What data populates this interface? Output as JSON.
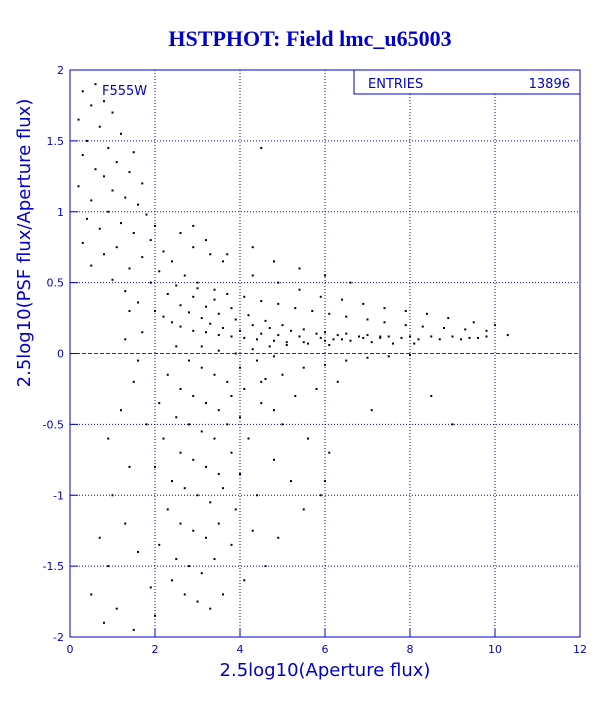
{
  "chart_data": {
    "type": "scatter",
    "title": "HSTPHOT: Field lmc_u65003",
    "filter_label": "F555W",
    "xlabel": "2.5log10(Aperture flux)",
    "ylabel": "2.5log10(PSF flux/Aperture flux)",
    "xlim": [
      0,
      12
    ],
    "ylim": [
      -2,
      2
    ],
    "x_ticks": [
      "0",
      "2",
      "4",
      "6",
      "8",
      "10",
      "12"
    ],
    "y_ticks": [
      "-2",
      "-1.5",
      "-1",
      "-0.5",
      "0",
      "0.5",
      "1",
      "1.5",
      "2"
    ],
    "grid": true,
    "reference_line_y": 0,
    "stats": {
      "label": "ENTRIES",
      "value": "13896"
    },
    "colors": {
      "text": "#0000cc",
      "frame": "#0000cc",
      "grid": "#0000cc",
      "points": "#000000",
      "zero_line": "#cc0000"
    },
    "points": [
      [
        0.6,
        1.9
      ],
      [
        0.3,
        1.85
      ],
      [
        0.8,
        1.78
      ],
      [
        0.5,
        1.75
      ],
      [
        1.0,
        1.7
      ],
      [
        0.2,
        1.65
      ],
      [
        0.7,
        1.6
      ],
      [
        1.2,
        1.55
      ],
      [
        0.4,
        1.5
      ],
      [
        0.9,
        1.45
      ],
      [
        1.5,
        1.42
      ],
      [
        0.3,
        1.4
      ],
      [
        1.1,
        1.35
      ],
      [
        0.6,
        1.3
      ],
      [
        1.4,
        1.28
      ],
      [
        0.8,
        1.25
      ],
      [
        1.7,
        1.2
      ],
      [
        0.2,
        1.18
      ],
      [
        1.0,
        1.15
      ],
      [
        1.3,
        1.1
      ],
      [
        0.5,
        1.08
      ],
      [
        1.6,
        1.05
      ],
      [
        0.9,
        1.0
      ],
      [
        1.8,
        0.98
      ],
      [
        0.4,
        0.95
      ],
      [
        1.2,
        0.92
      ],
      [
        2.0,
        0.9
      ],
      [
        0.7,
        0.88
      ],
      [
        1.5,
        0.85
      ],
      [
        1.9,
        0.8
      ],
      [
        0.3,
        0.78
      ],
      [
        1.1,
        0.75
      ],
      [
        2.2,
        0.72
      ],
      [
        0.8,
        0.7
      ],
      [
        1.7,
        0.68
      ],
      [
        2.4,
        0.65
      ],
      [
        0.5,
        0.62
      ],
      [
        1.4,
        0.6
      ],
      [
        2.1,
        0.58
      ],
      [
        2.7,
        0.55
      ],
      [
        1.0,
        0.52
      ],
      [
        1.9,
        0.5
      ],
      [
        2.5,
        0.48
      ],
      [
        3.0,
        0.46
      ],
      [
        1.3,
        0.44
      ],
      [
        2.3,
        0.42
      ],
      [
        2.9,
        0.4
      ],
      [
        3.4,
        0.38
      ],
      [
        1.6,
        0.36
      ],
      [
        2.6,
        0.34
      ],
      [
        3.2,
        0.33
      ],
      [
        3.8,
        0.32
      ],
      [
        2.0,
        0.3
      ],
      [
        2.8,
        0.29
      ],
      [
        3.5,
        0.28
      ],
      [
        4.2,
        0.27
      ],
      [
        2.2,
        0.26
      ],
      [
        3.1,
        0.25
      ],
      [
        3.9,
        0.24
      ],
      [
        4.6,
        0.23
      ],
      [
        2.4,
        0.22
      ],
      [
        3.3,
        0.21
      ],
      [
        4.3,
        0.2
      ],
      [
        5.0,
        0.2
      ],
      [
        2.6,
        0.19
      ],
      [
        3.6,
        0.18
      ],
      [
        4.7,
        0.18
      ],
      [
        5.5,
        0.17
      ],
      [
        2.9,
        0.16
      ],
      [
        4.0,
        0.16
      ],
      [
        5.2,
        0.16
      ],
      [
        6.0,
        0.15
      ],
      [
        3.2,
        0.15
      ],
      [
        4.5,
        0.14
      ],
      [
        5.8,
        0.14
      ],
      [
        6.5,
        0.14
      ],
      [
        3.5,
        0.13
      ],
      [
        4.9,
        0.13
      ],
      [
        6.3,
        0.13
      ],
      [
        7.0,
        0.13
      ],
      [
        3.8,
        0.12
      ],
      [
        5.4,
        0.12
      ],
      [
        6.8,
        0.12
      ],
      [
        7.5,
        0.12
      ],
      [
        4.1,
        0.11
      ],
      [
        5.9,
        0.11
      ],
      [
        7.3,
        0.11
      ],
      [
        8.0,
        0.12
      ],
      [
        4.4,
        0.1
      ],
      [
        6.2,
        0.1
      ],
      [
        7.8,
        0.11
      ],
      [
        8.5,
        0.12
      ],
      [
        4.8,
        0.09
      ],
      [
        6.6,
        0.09
      ],
      [
        8.2,
        0.1
      ],
      [
        9.0,
        0.12
      ],
      [
        5.1,
        0.08
      ],
      [
        7.1,
        0.08
      ],
      [
        8.7,
        0.1
      ],
      [
        9.4,
        0.11
      ],
      [
        5.6,
        0.07
      ],
      [
        7.6,
        0.07
      ],
      [
        9.2,
        0.1
      ],
      [
        9.8,
        0.12
      ],
      [
        6.1,
        0.06
      ],
      [
        8.1,
        0.07
      ],
      [
        9.6,
        0.11
      ],
      [
        10.3,
        0.13
      ],
      [
        3.0,
        0.5
      ],
      [
        3.4,
        0.45
      ],
      [
        3.7,
        0.42
      ],
      [
        4.1,
        0.4
      ],
      [
        4.5,
        0.37
      ],
      [
        4.9,
        0.35
      ],
      [
        5.3,
        0.32
      ],
      [
        5.7,
        0.3
      ],
      [
        6.1,
        0.28
      ],
      [
        6.5,
        0.26
      ],
      [
        7.0,
        0.24
      ],
      [
        7.4,
        0.22
      ],
      [
        7.9,
        0.2
      ],
      [
        8.3,
        0.19
      ],
      [
        8.8,
        0.18
      ],
      [
        9.3,
        0.17
      ],
      [
        9.8,
        0.16
      ],
      [
        3.1,
        0.05
      ],
      [
        3.5,
        0.02
      ],
      [
        3.9,
        0.0
      ],
      [
        4.3,
        0.03
      ],
      [
        4.7,
        0.05
      ],
      [
        5.1,
        0.06
      ],
      [
        5.5,
        0.08
      ],
      [
        6.0,
        0.09
      ],
      [
        6.4,
        0.1
      ],
      [
        6.9,
        0.11
      ],
      [
        7.3,
        0.12
      ],
      [
        2.5,
        0.05
      ],
      [
        2.8,
        -0.05
      ],
      [
        3.1,
        -0.1
      ],
      [
        3.4,
        -0.15
      ],
      [
        3.7,
        -0.2
      ],
      [
        4.0,
        -0.1
      ],
      [
        4.4,
        -0.05
      ],
      [
        4.8,
        -0.02
      ],
      [
        2.3,
        -0.15
      ],
      [
        2.6,
        -0.25
      ],
      [
        2.9,
        -0.3
      ],
      [
        3.2,
        -0.35
      ],
      [
        3.5,
        -0.4
      ],
      [
        3.8,
        -0.3
      ],
      [
        4.1,
        -0.25
      ],
      [
        4.6,
        -0.18
      ],
      [
        2.1,
        -0.35
      ],
      [
        2.5,
        -0.45
      ],
      [
        2.8,
        -0.5
      ],
      [
        3.1,
        -0.55
      ],
      [
        3.4,
        -0.6
      ],
      [
        3.7,
        -0.5
      ],
      [
        4.0,
        -0.45
      ],
      [
        4.5,
        -0.35
      ],
      [
        2.2,
        -0.6
      ],
      [
        2.6,
        -0.7
      ],
      [
        2.9,
        -0.75
      ],
      [
        3.2,
        -0.8
      ],
      [
        3.5,
        -0.85
      ],
      [
        3.8,
        -0.7
      ],
      [
        4.2,
        -0.6
      ],
      [
        5.0,
        -0.5
      ],
      [
        2.0,
        -0.8
      ],
      [
        2.4,
        -0.9
      ],
      [
        2.7,
        -0.95
      ],
      [
        3.0,
        -1.0
      ],
      [
        3.3,
        -1.05
      ],
      [
        3.6,
        -0.95
      ],
      [
        4.0,
        -0.85
      ],
      [
        4.8,
        -0.75
      ],
      [
        2.3,
        -1.1
      ],
      [
        2.6,
        -1.2
      ],
      [
        2.9,
        -1.25
      ],
      [
        3.2,
        -1.3
      ],
      [
        3.5,
        -1.2
      ],
      [
        3.9,
        -1.1
      ],
      [
        4.4,
        -1.0
      ],
      [
        5.2,
        -0.9
      ],
      [
        2.1,
        -1.35
      ],
      [
        2.5,
        -1.45
      ],
      [
        2.8,
        -1.5
      ],
      [
        3.1,
        -1.55
      ],
      [
        3.4,
        -1.45
      ],
      [
        3.8,
        -1.35
      ],
      [
        4.3,
        -1.25
      ],
      [
        5.5,
        -1.1
      ],
      [
        2.4,
        -1.6
      ],
      [
        2.7,
        -1.7
      ],
      [
        3.0,
        -1.75
      ],
      [
        3.3,
        -1.8
      ],
      [
        3.6,
        -1.7
      ],
      [
        4.1,
        -1.6
      ],
      [
        4.6,
        -1.5
      ],
      [
        6.0,
        -0.9
      ],
      [
        1.5,
        -0.2
      ],
      [
        1.2,
        -0.4
      ],
      [
        0.9,
        -0.6
      ],
      [
        1.8,
        -0.5
      ],
      [
        1.4,
        -0.8
      ],
      [
        1.0,
        -1.0
      ],
      [
        0.7,
        -1.3
      ],
      [
        1.3,
        -1.2
      ],
      [
        0.9,
        -1.5
      ],
      [
        1.6,
        -1.4
      ],
      [
        0.5,
        -1.7
      ],
      [
        1.1,
        -1.8
      ],
      [
        1.9,
        -1.65
      ],
      [
        0.8,
        -1.9
      ],
      [
        1.5,
        -1.95
      ],
      [
        2.0,
        -1.85
      ],
      [
        4.5,
        -0.2
      ],
      [
        5.0,
        -0.15
      ],
      [
        5.5,
        -0.1
      ],
      [
        6.0,
        -0.08
      ],
      [
        6.5,
        -0.05
      ],
      [
        7.0,
        -0.03
      ],
      [
        7.5,
        -0.02
      ],
      [
        8.0,
        -0.01
      ],
      [
        4.8,
        -0.4
      ],
      [
        5.3,
        -0.3
      ],
      [
        5.8,
        -0.25
      ],
      [
        6.3,
        -0.2
      ],
      [
        7.1,
        -0.4
      ],
      [
        8.5,
        -0.3
      ],
      [
        9.0,
        -0.5
      ],
      [
        5.6,
        -0.6
      ],
      [
        6.1,
        -0.7
      ],
      [
        5.9,
        -1.0
      ],
      [
        4.9,
        -1.3
      ],
      [
        3.3,
        0.7
      ],
      [
        3.6,
        0.65
      ],
      [
        2.9,
        0.75
      ],
      [
        4.3,
        0.55
      ],
      [
        4.9,
        0.5
      ],
      [
        5.4,
        0.45
      ],
      [
        5.9,
        0.4
      ],
      [
        6.4,
        0.38
      ],
      [
        6.9,
        0.35
      ],
      [
        7.4,
        0.32
      ],
      [
        7.9,
        0.3
      ],
      [
        8.4,
        0.28
      ],
      [
        8.9,
        0.25
      ],
      [
        9.5,
        0.22
      ],
      [
        10.0,
        0.2
      ],
      [
        2.6,
        0.85
      ],
      [
        2.9,
        0.9
      ],
      [
        3.2,
        0.8
      ],
      [
        3.7,
        0.7
      ],
      [
        4.3,
        0.75
      ],
      [
        4.8,
        0.65
      ],
      [
        5.4,
        0.6
      ],
      [
        6.0,
        0.55
      ],
      [
        6.6,
        0.5
      ],
      [
        4.5,
        1.45
      ],
      [
        1.4,
        0.3
      ],
      [
        1.7,
        0.15
      ],
      [
        1.3,
        0.1
      ],
      [
        1.6,
        -0.05
      ]
    ]
  }
}
